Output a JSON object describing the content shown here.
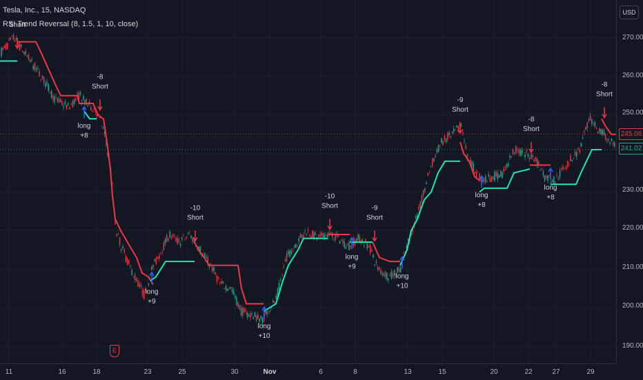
{
  "header": {
    "symbol_line": "Tesla, Inc., 15, NASDAQ",
    "indicator_line": "RSI Trend Reversal (8, 1.5, 1, 10, close)"
  },
  "price_axis": {
    "currency": "USD",
    "ticks": [
      "270.00",
      "260.00",
      "250.00",
      "240.00",
      "230.00",
      "220.00",
      "210.00",
      "200.00",
      "190.00"
    ],
    "last_price_red": "245.06",
    "last_price_green": "241.02"
  },
  "time_axis": {
    "ticks": [
      "11",
      "16",
      "18",
      "23",
      "25",
      "30",
      "Nov",
      "6",
      "8",
      "13",
      "15",
      "20",
      "22",
      "27",
      "29"
    ]
  },
  "event_marker": {
    "label": "E"
  },
  "colors": {
    "background": "#131722",
    "grid": "#1e222d",
    "up_candle": "#22ab94",
    "down_candle": "#f23645",
    "trend_short": "#f23645",
    "trend_long": "#1de9b6",
    "signal_arrow": "#2962ff"
  },
  "chart_data": {
    "type": "line",
    "title": "Tesla, Inc., 15, NASDAQ",
    "ylim": [
      186,
      276
    ],
    "x_ticks": [
      "11",
      "16",
      "18",
      "23",
      "25",
      "30",
      "Nov",
      "6",
      "8",
      "13",
      "15",
      "20",
      "22",
      "27",
      "29"
    ],
    "y_ticks": [
      190,
      200,
      210,
      220,
      230,
      240,
      250,
      260,
      270
    ],
    "price_path": [
      [
        0,
        266
      ],
      [
        20,
        270
      ],
      [
        40,
        265
      ],
      [
        60,
        260
      ],
      [
        80,
        254
      ],
      [
        100,
        252
      ],
      [
        115,
        255
      ],
      [
        125,
        253
      ],
      [
        140,
        251
      ],
      [
        150,
        246
      ],
      [
        160,
        237
      ],
      [
        168,
        220
      ],
      [
        180,
        214
      ],
      [
        195,
        208
      ],
      [
        210,
        203
      ],
      [
        220,
        210
      ],
      [
        232,
        214
      ],
      [
        245,
        219
      ],
      [
        260,
        217
      ],
      [
        275,
        219
      ],
      [
        290,
        215
      ],
      [
        305,
        211
      ],
      [
        320,
        206
      ],
      [
        335,
        205
      ],
      [
        350,
        199
      ],
      [
        365,
        198
      ],
      [
        380,
        197
      ],
      [
        400,
        202
      ],
      [
        415,
        213
      ],
      [
        430,
        217
      ],
      [
        445,
        220
      ],
      [
        460,
        218
      ],
      [
        475,
        219
      ],
      [
        490,
        218
      ],
      [
        505,
        216
      ],
      [
        520,
        218
      ],
      [
        535,
        216
      ],
      [
        548,
        210
      ],
      [
        565,
        208
      ],
      [
        580,
        210
      ],
      [
        595,
        219
      ],
      [
        610,
        227
      ],
      [
        625,
        237
      ],
      [
        640,
        243
      ],
      [
        655,
        245
      ],
      [
        668,
        247
      ],
      [
        678,
        239
      ],
      [
        690,
        235
      ],
      [
        700,
        233
      ],
      [
        715,
        234
      ],
      [
        730,
        235
      ],
      [
        745,
        241
      ],
      [
        760,
        240
      ],
      [
        775,
        239
      ],
      [
        790,
        234
      ],
      [
        805,
        233
      ],
      [
        820,
        237
      ],
      [
        840,
        241
      ],
      [
        855,
        249
      ],
      [
        868,
        246
      ],
      [
        880,
        244
      ],
      [
        893,
        242
      ]
    ],
    "series": [
      {
        "name": "short",
        "segments": [
          [
            [
              25,
              269
            ],
            [
              52,
              269
            ],
            [
              60,
              266
            ],
            [
              70,
              262
            ],
            [
              80,
              258
            ],
            [
              88,
              255
            ],
            [
              112,
              255
            ],
            [
              115,
              253
            ],
            [
              135,
              253
            ],
            [
              142,
              250
            ],
            [
              150,
              249
            ],
            [
              155,
              243
            ],
            [
              160,
              236
            ],
            [
              163,
              229
            ],
            [
              167,
              223
            ],
            [
              175,
              220
            ],
            [
              188,
              216
            ],
            [
              198,
              213
            ],
            [
              206,
              209
            ],
            [
              215,
              208
            ],
            [
              222,
              206
            ]
          ],
          [
            [
              282,
              217
            ],
            [
              288,
              215
            ],
            [
              296,
              213
            ],
            [
              303,
              211
            ],
            [
              345,
              211
            ],
            [
              350,
              205
            ],
            [
              357,
              201
            ],
            [
              382,
              201
            ]
          ],
          [
            [
              475,
              219
            ],
            [
              507,
              219
            ]
          ],
          [
            [
              540,
              217
            ],
            [
              545,
              215
            ],
            [
              550,
              213
            ],
            [
              565,
              212
            ],
            [
              580,
              212
            ]
          ],
          [
            [
              667,
              243
            ],
            [
              672,
              240
            ],
            [
              680,
              238
            ],
            [
              688,
              234
            ],
            [
              695,
              233
            ]
          ],
          [
            [
              768,
              237
            ],
            [
              798,
              237
            ]
          ],
          [
            [
              872,
              249
            ],
            [
              878,
              247
            ],
            [
              886,
              245
            ],
            [
              893,
              245
            ]
          ]
        ]
      },
      {
        "name": "long",
        "segments": [
          [
            [
              0,
              264
            ],
            [
              25,
              264
            ]
          ],
          [
            [
              122,
              251
            ],
            [
              130,
              249
            ],
            [
              140,
              249
            ]
          ],
          [
            [
              218,
              207
            ],
            [
              226,
              208
            ],
            [
              240,
              212
            ],
            [
              282,
              212
            ]
          ],
          [
            [
              382,
              199
            ],
            [
              400,
              201
            ],
            [
              410,
              207
            ],
            [
              418,
              211
            ],
            [
              425,
              213
            ],
            [
              432,
              215
            ],
            [
              440,
              218
            ],
            [
              475,
              218
            ]
          ],
          [
            [
              507,
              217
            ],
            [
              540,
              217
            ]
          ],
          [
            [
              580,
              211
            ],
            [
              590,
              215
            ],
            [
              596,
              220
            ],
            [
              605,
              223
            ],
            [
              615,
              228
            ],
            [
              625,
              230
            ],
            [
              635,
              235
            ],
            [
              645,
              238
            ],
            [
              667,
              238
            ]
          ],
          [
            [
              695,
              230
            ],
            [
              702,
              231
            ],
            [
              735,
              231
            ],
            [
              745,
              235
            ],
            [
              768,
              236
            ]
          ],
          [
            [
              798,
              232
            ],
            [
              835,
              232
            ],
            [
              842,
              235
            ],
            [
              850,
              238
            ],
            [
              858,
              241
            ],
            [
              872,
              241
            ]
          ]
        ]
      }
    ],
    "signals": [
      {
        "type": "short",
        "x": 25,
        "price": 270,
        "labels": [
          "Short"
        ]
      },
      {
        "type": "long",
        "x": 122,
        "price": 252,
        "labels": [
          "long",
          "+8"
        ]
      },
      {
        "type": "short",
        "x": 145,
        "price": 254,
        "labels": [
          "-8",
          "Short"
        ]
      },
      {
        "type": "long",
        "x": 220,
        "price": 209,
        "labels": [
          "long",
          "+9"
        ]
      },
      {
        "type": "short",
        "x": 283,
        "price": 220,
        "labels": [
          "-10",
          "Short"
        ]
      },
      {
        "type": "long",
        "x": 383,
        "price": 200,
        "labels": [
          "long",
          "+10"
        ]
      },
      {
        "type": "short",
        "x": 478,
        "price": 223,
        "labels": [
          "-10",
          "Short"
        ]
      },
      {
        "type": "long",
        "x": 510,
        "price": 218,
        "labels": [
          "long",
          "+9"
        ]
      },
      {
        "type": "short",
        "x": 543,
        "price": 220,
        "labels": [
          "-9",
          "Short"
        ]
      },
      {
        "type": "long",
        "x": 583,
        "price": 213,
        "labels": [
          "long",
          "+10"
        ]
      },
      {
        "type": "short",
        "x": 667,
        "price": 248,
        "labels": [
          "-9",
          "Short"
        ]
      },
      {
        "type": "long",
        "x": 698,
        "price": 234,
        "labels": [
          "long",
          "+8"
        ]
      },
      {
        "type": "short",
        "x": 770,
        "price": 243,
        "labels": [
          "-8",
          "Short"
        ]
      },
      {
        "type": "long",
        "x": 798,
        "price": 236,
        "labels": [
          "long",
          "+8"
        ]
      },
      {
        "type": "short",
        "x": 876,
        "price": 252,
        "labels": [
          "-8",
          "Short"
        ]
      }
    ]
  }
}
